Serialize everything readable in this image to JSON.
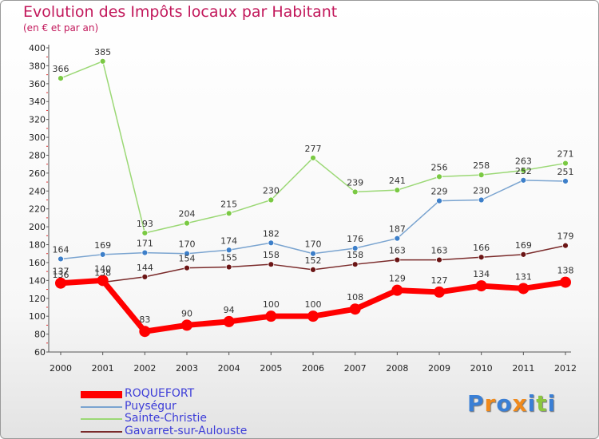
{
  "title": "Evolution des Impôts locaux par Habitant",
  "subtitle": "(en € et par an)",
  "brand": {
    "text": "Proxiti",
    "letter_colors": [
      "#3a7fd5",
      "#f08a1c",
      "#3a7fd5",
      "#f08a1c",
      "#3a7fd5",
      "#8cc63f",
      "#3a7fd5"
    ]
  },
  "chart_data": {
    "type": "line",
    "x": [
      "2000",
      "2001",
      "2002",
      "2003",
      "2004",
      "2005",
      "2006",
      "2007",
      "2008",
      "2009",
      "2010",
      "2011",
      "2012"
    ],
    "ylim": [
      60,
      400
    ],
    "yticks": [
      "60",
      "80",
      "100",
      "120",
      "140",
      "160",
      "180",
      "200",
      "220",
      "240",
      "260",
      "280",
      "300",
      "320",
      "340",
      "360",
      "380",
      "400"
    ],
    "grid": false,
    "legend_position": "bottom-left",
    "series": [
      {
        "name": "ROQUEFORT",
        "values": [
          137,
          140,
          83,
          90,
          94,
          100,
          100,
          108,
          129,
          127,
          134,
          131,
          138
        ],
        "labels": [
          "137",
          "140",
          "83",
          "90",
          "94",
          "100",
          "100",
          "108",
          "129",
          "127",
          "134",
          "131",
          "138"
        ],
        "color": "#ff0000",
        "marker_color": "#ff0000",
        "line_width": 7,
        "marker_radius": 7
      },
      {
        "name": "Puységur",
        "values": [
          164,
          169,
          171,
          170,
          174,
          182,
          170,
          176,
          187,
          229,
          230,
          252,
          251
        ],
        "labels": [
          "164",
          "169",
          "171",
          "170",
          "174",
          "182",
          "170",
          "176",
          "187",
          "229",
          "230",
          "252",
          "251"
        ],
        "color": "#7aa4d0",
        "marker_color": "#3d7fc9",
        "line_width": 1.5,
        "marker_radius": 3.5
      },
      {
        "name": "Sainte-Christie",
        "values": [
          366,
          385,
          193,
          204,
          215,
          230,
          277,
          239,
          241,
          256,
          258,
          263,
          271
        ],
        "labels": [
          "366",
          "385",
          "193",
          "204",
          "215",
          "230",
          "277",
          "239",
          "241",
          "256",
          "258",
          "263",
          "271"
        ],
        "color": "#9bd875",
        "marker_color": "#7ac943",
        "line_width": 1.5,
        "marker_radius": 3.5
      },
      {
        "name": "Gavarret-sur-Aulouste",
        "values": [
          136,
          138,
          144,
          154,
          155,
          158,
          152,
          158,
          163,
          163,
          166,
          169,
          179
        ],
        "labels": [
          "136",
          "138",
          "144",
          "154",
          "155",
          "158",
          "152",
          "158",
          "163",
          "163",
          "166",
          "169",
          "179"
        ],
        "color": "#7a2a2a",
        "marker_color": "#6b1515",
        "line_width": 1.5,
        "marker_radius": 3.5
      }
    ]
  }
}
